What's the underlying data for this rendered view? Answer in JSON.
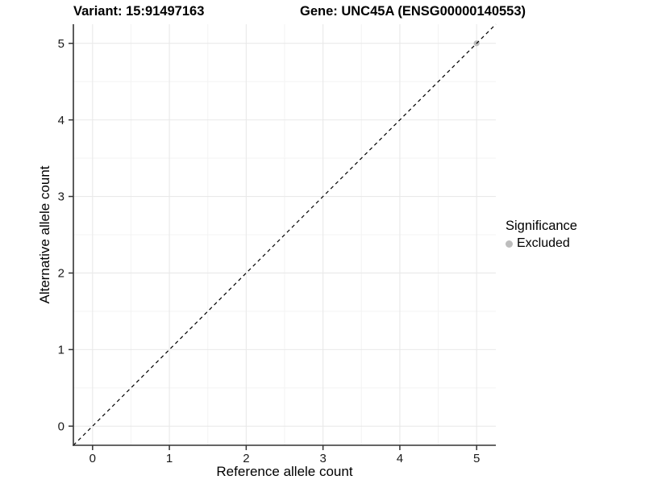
{
  "titles": {
    "variant": "Variant: 15:91497163",
    "gene": "Gene: UNC45A (ENSG00000140553)"
  },
  "axes": {
    "x": {
      "label": "Reference allele count",
      "tick_labels": [
        "0",
        "1",
        "2",
        "3",
        "4",
        "5"
      ]
    },
    "y": {
      "label": "Alternative allele count",
      "tick_labels": [
        "0",
        "1",
        "2",
        "3",
        "4",
        "5"
      ]
    }
  },
  "legend": {
    "title": "Significance",
    "items": [
      {
        "label": "Excluded",
        "color": "#bdbdbd"
      }
    ]
  },
  "chart_data": {
    "type": "scatter",
    "title": "Variant: 15:91497163 | Gene: UNC45A (ENSG00000140553)",
    "xlabel": "Reference allele count",
    "ylabel": "Alternative allele count",
    "xlim": [
      -0.25,
      5.25
    ],
    "ylim": [
      -0.25,
      5.25
    ],
    "x_ticks": [
      0,
      1,
      2,
      3,
      4,
      5
    ],
    "y_ticks": [
      0,
      1,
      2,
      3,
      4,
      5
    ],
    "x_minor_ticks": [
      0.5,
      1.5,
      2.5,
      3.5,
      4.5
    ],
    "y_minor_ticks": [
      0.5,
      1.5,
      2.5,
      3.5,
      4.5
    ],
    "grid": "major-and-minor",
    "legend_position": "right",
    "series": [
      {
        "name": "Excluded",
        "marker": "circle",
        "color": "#bdbdbd",
        "points": [
          [
            5,
            5
          ]
        ]
      }
    ],
    "reference_line": {
      "style": "dashed",
      "slope": 1,
      "intercept": 0,
      "color": "#000000"
    }
  },
  "colors": {
    "background": "#ffffff",
    "grid_major": "#e9e9e9",
    "grid_minor": "#f3f3f3",
    "axis_line": "#333333",
    "tick_mark": "#333333",
    "tick_text": "#1a1a1a",
    "point": "#bdbdbd",
    "reference_line": "#000000"
  }
}
